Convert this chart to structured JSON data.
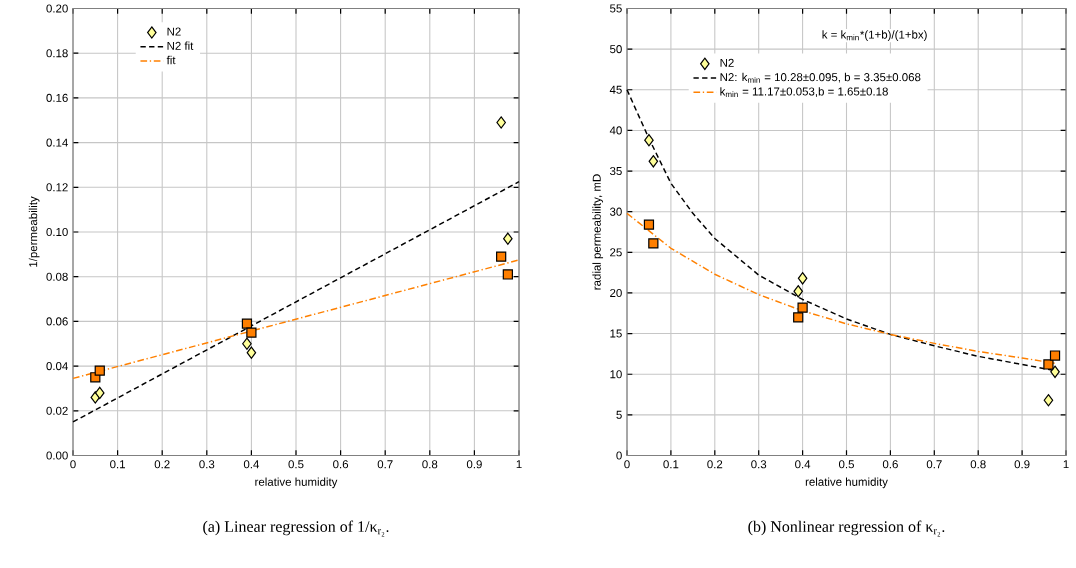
{
  "chart_data": [
    {
      "type": "scatter",
      "xlabel": "relative humidity",
      "ylabel": "1/permeability",
      "xlim": [
        0,
        1
      ],
      "ylim": [
        0,
        0.2
      ],
      "xticks": [
        0,
        0.1,
        0.2,
        0.3,
        0.4,
        0.5,
        0.6,
        0.7,
        0.8,
        0.9,
        1
      ],
      "yticks": [
        {
          "value": 0,
          "label": "0.00"
        },
        {
          "value": 0.02,
          "label": "0.02"
        },
        {
          "value": 0.04,
          "label": "0.04"
        },
        {
          "value": 0.06,
          "label": "0.06"
        },
        {
          "value": 0.08,
          "label": "0.08"
        },
        {
          "value": 0.1,
          "label": "0.10"
        },
        {
          "value": 0.12,
          "label": "0.12"
        },
        {
          "value": 0.14,
          "label": "0.14"
        },
        {
          "value": 0.16,
          "label": "0.16"
        },
        {
          "value": 0.18,
          "label": "0.18"
        },
        {
          "value": 0.2,
          "label": "0.20"
        }
      ],
      "grid": true,
      "legend": "top left",
      "series": [
        {
          "name": "N2",
          "marker": "diamond",
          "color": "#ffff99",
          "x": [
            0.05,
            0.06,
            0.39,
            0.4,
            0.96,
            0.975
          ],
          "values": [
            0.026,
            0.028,
            0.05,
            0.046,
            0.149,
            0.097
          ]
        },
        {
          "marker": "square",
          "color": "#ff7f00",
          "x": [
            0.05,
            0.06,
            0.39,
            0.4,
            0.96,
            0.975
          ],
          "values": [
            0.035,
            0.038,
            0.059,
            0.055,
            0.089,
            0.081
          ]
        },
        {
          "name": "N2 fit",
          "type": "line",
          "line_style": "dashed",
          "color": "#000000",
          "x": [
            0,
            1
          ],
          "values": [
            0.015,
            0.1225
          ]
        },
        {
          "name": "fit",
          "type": "line",
          "line_style": "dashdot",
          "color": "#ff8000",
          "x": [
            0,
            1
          ],
          "values": [
            0.0345,
            0.0875
          ]
        }
      ],
      "annotations": [
        "(a) Linear regression of 1/κ$_{r₂}$."
      ]
    },
    {
      "type": "scatter",
      "xlabel": "relative humidity",
      "ylabel": "radial permeability, mD",
      "xlim": [
        0,
        1
      ],
      "ylim": [
        0,
        55
      ],
      "xticks": [
        0,
        0.1,
        0.2,
        0.3,
        0.4,
        0.5,
        0.6,
        0.7,
        0.8,
        0.9,
        1
      ],
      "yticks": [
        0,
        5,
        10,
        15,
        20,
        25,
        30,
        35,
        40,
        45,
        50,
        55
      ],
      "grid": true,
      "legend": "top left",
      "legend_title": "k = k$_{min}$*(1+b)/(1+bx)",
      "series": [
        {
          "name": "N2",
          "marker": "diamond",
          "color": "#ffff99",
          "x": [
            0.05,
            0.06,
            0.39,
            0.4,
            0.96,
            0.975
          ],
          "values": [
            38.8,
            36.2,
            20.2,
            21.8,
            6.8,
            10.3
          ]
        },
        {
          "marker": "square",
          "color": "#ff7f00",
          "x": [
            0.05,
            0.06,
            0.39,
            0.4,
            0.96,
            0.975
          ],
          "values": [
            28.4,
            26.1,
            17.0,
            18.2,
            11.2,
            12.3
          ]
        },
        {
          "name": "N2: k$_{min}$ = 10.28±0.095, b = 3.35±0.068",
          "type": "line",
          "line_style": "dashed",
          "color": "#000000",
          "x": [
            0,
            0.05,
            0.1,
            0.15,
            0.2,
            0.3,
            0.4,
            0.5,
            0.6,
            0.7,
            0.8,
            0.9,
            0.97
          ],
          "values": [
            45,
            39,
            33.5,
            29.8,
            26.7,
            22.2,
            19.2,
            16.8,
            14.9,
            13.5,
            12.2,
            11.2,
            10.5
          ]
        },
        {
          "name": "k$_{min}$ = 11.17±0.053,b = 1.65±0.18",
          "type": "line",
          "line_style": "dashdot",
          "color": "#ff8000",
          "x": [
            0,
            0.1,
            0.2,
            0.3,
            0.4,
            0.5,
            0.6,
            0.7,
            0.8,
            0.9,
            0.98
          ],
          "values": [
            29.8,
            25.5,
            22.3,
            19.8,
            17.8,
            16.2,
            14.9,
            13.8,
            12.8,
            12.0,
            11.3
          ]
        }
      ],
      "annotations": [
        "(b) Nonlinear regression of κ$_{r₂}$."
      ]
    }
  ]
}
